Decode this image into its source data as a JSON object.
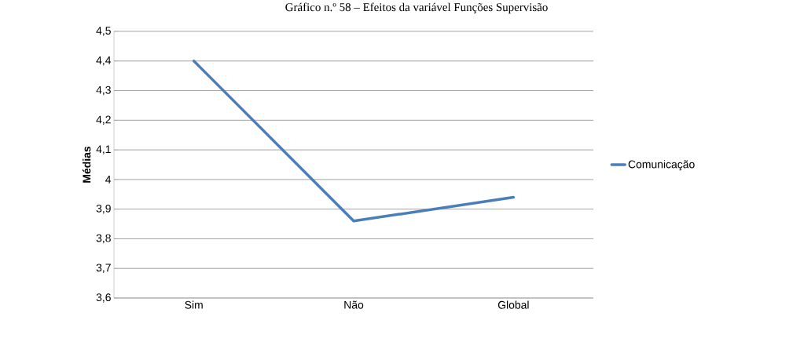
{
  "chart_data": {
    "type": "line",
    "title": "Gráfico n.º 58 – Efeitos da variável Funções Supervisão",
    "ylabel": "Médias",
    "categories": [
      "Sim",
      "Não",
      "Global"
    ],
    "series": [
      {
        "name": "Comunicação",
        "color": "#4a7ebb",
        "values": [
          4.4,
          3.86,
          3.94
        ]
      }
    ],
    "ylim": [
      3.6,
      4.5
    ],
    "yticks": [
      {
        "value": 3.6,
        "label": "3,6"
      },
      {
        "value": 3.7,
        "label": "3,7"
      },
      {
        "value": 3.8,
        "label": "3,8"
      },
      {
        "value": 3.9,
        "label": "3,9"
      },
      4,
      {
        "value": 4.1,
        "label": "4,1"
      },
      {
        "value": 4.2,
        "label": "4,2"
      },
      {
        "value": 4.3,
        "label": "4,3"
      },
      {
        "value": 4.4,
        "label": "4,4"
      },
      {
        "value": 4.5,
        "label": "4,5"
      }
    ],
    "grid": "y",
    "legend": "right",
    "marker": "none",
    "line_style": "solid"
  }
}
